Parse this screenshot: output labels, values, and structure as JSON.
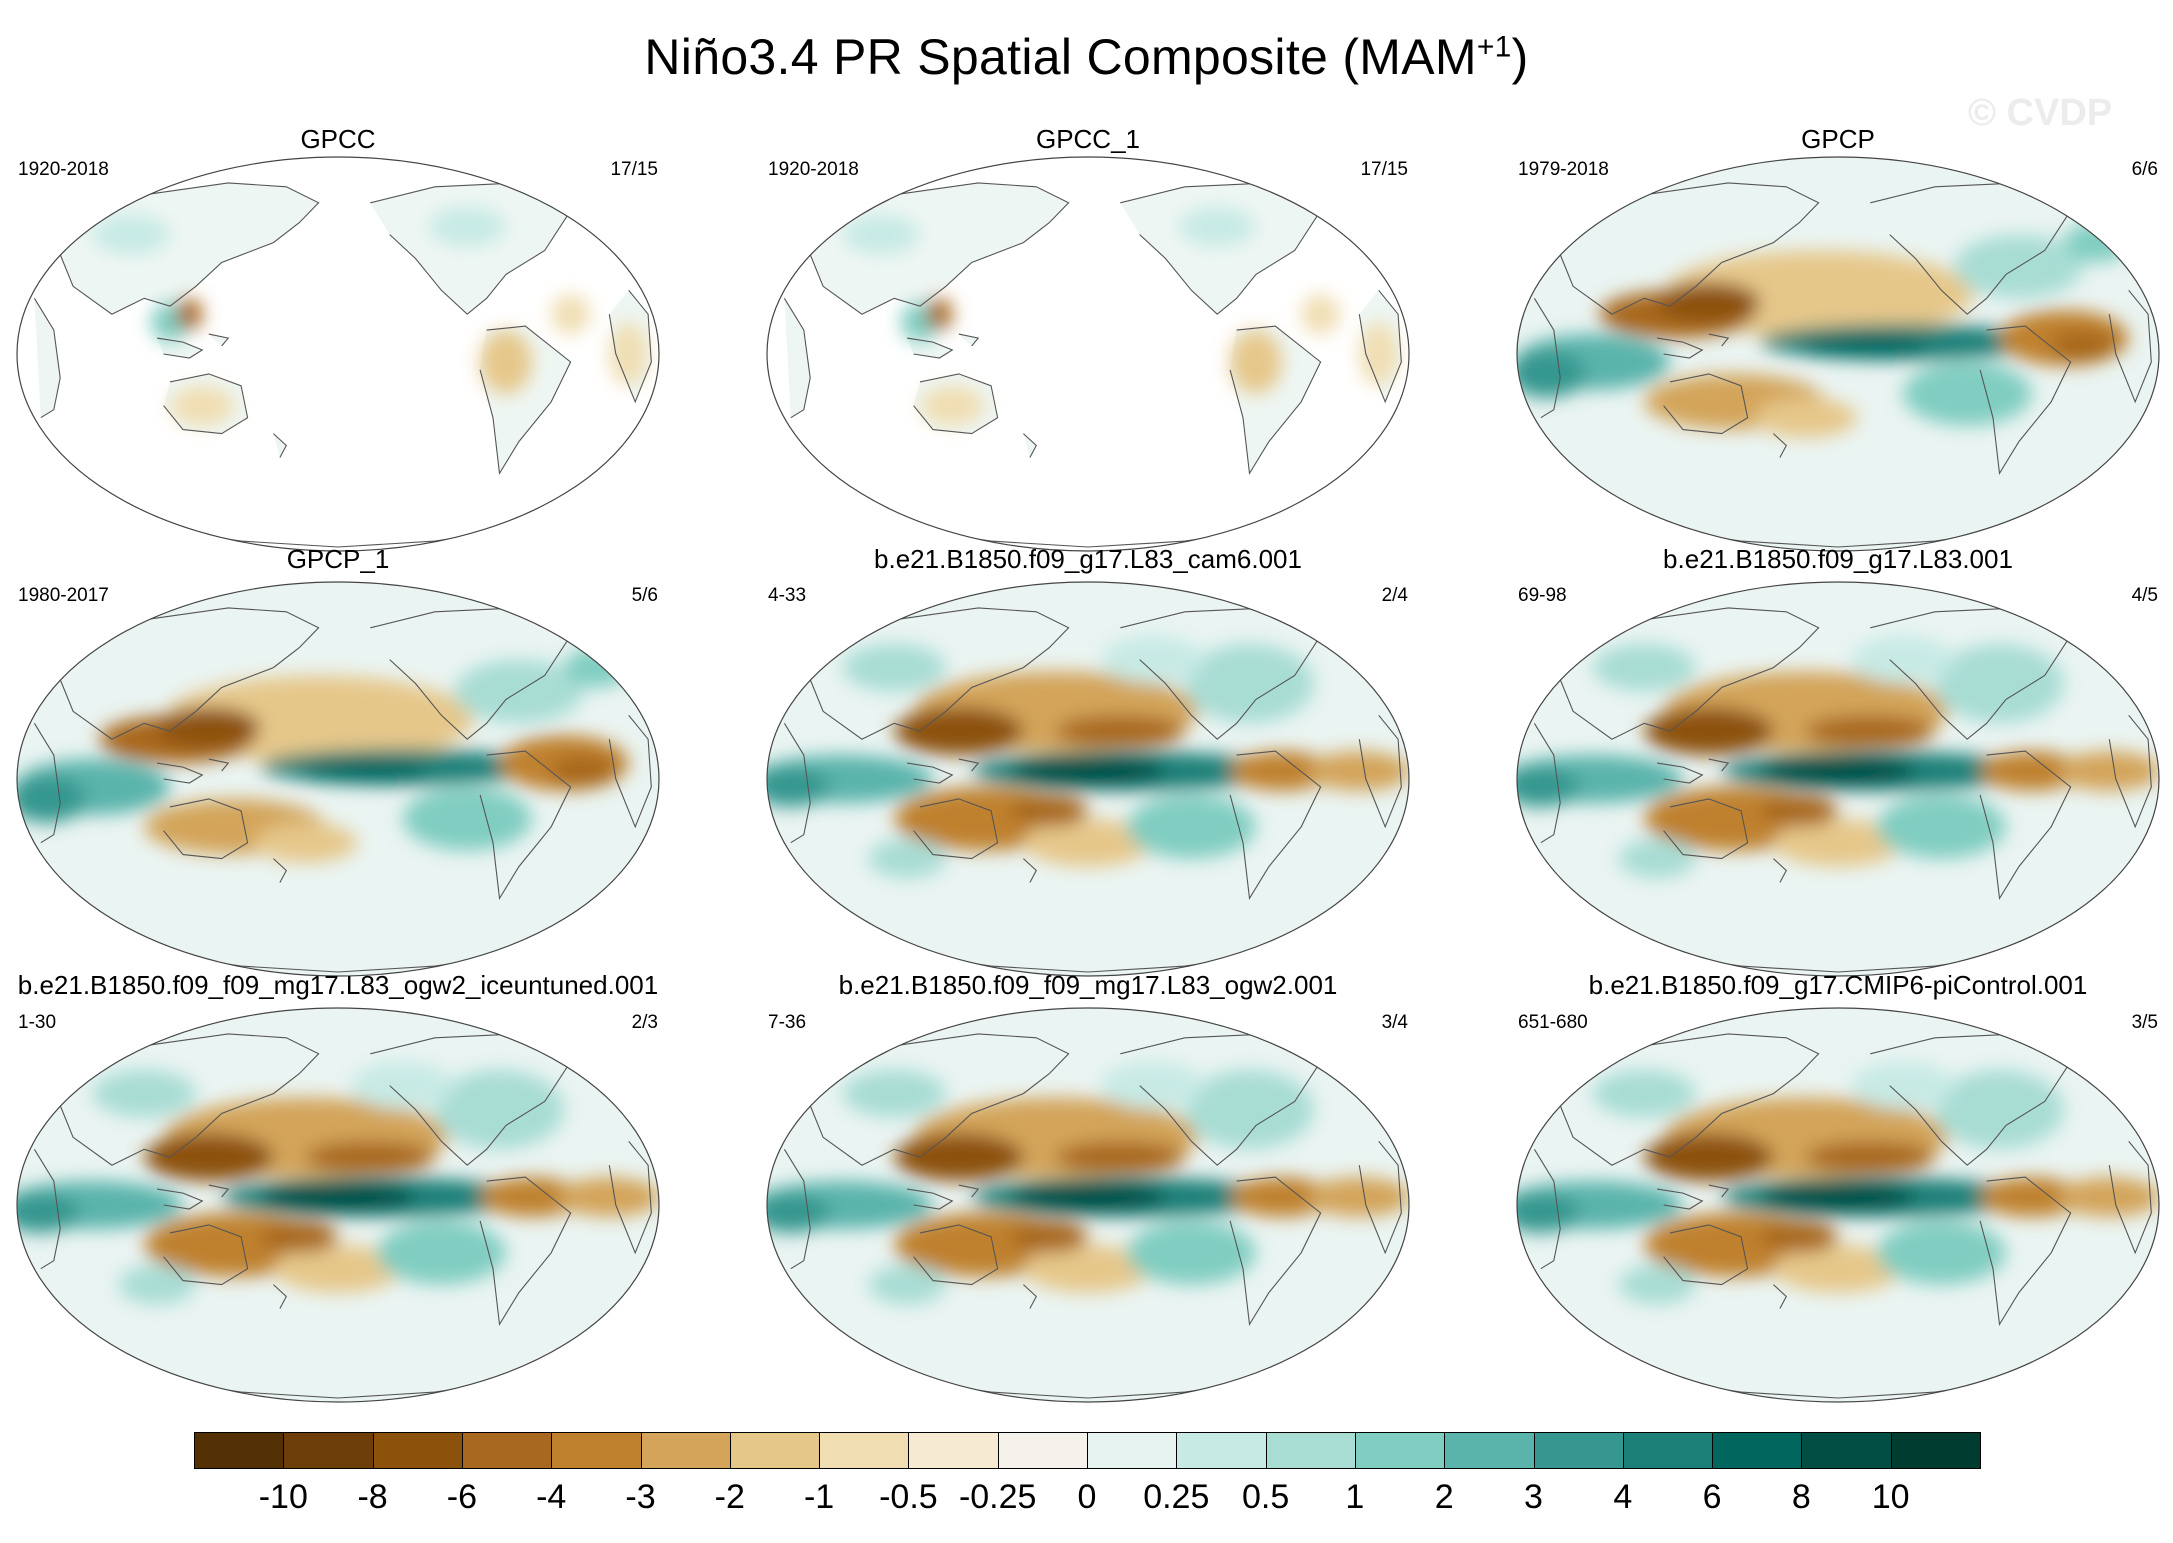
{
  "figure": {
    "title_main": "Niño3.4 PR Spatial Composite (MAM",
    "title_sup": "+1",
    "title_close": ")",
    "watermark": "© CVDP"
  },
  "panels": [
    {
      "name": "GPCC",
      "period": "1920-2018",
      "count": "17/15",
      "coverage": "land",
      "pattern": "weak"
    },
    {
      "name": "GPCC_1",
      "period": "1920-2018",
      "count": "17/15",
      "coverage": "land",
      "pattern": "weak"
    },
    {
      "name": "GPCP",
      "period": "1979-2018",
      "count": "6/6",
      "coverage": "global",
      "pattern": "obs"
    },
    {
      "name": "GPCP_1",
      "period": "1980-2017",
      "count": "5/6",
      "coverage": "global",
      "pattern": "obs"
    },
    {
      "name": "b.e21.B1850.f09_g17.L83_cam6.001",
      "period": "4-33",
      "count": "2/4",
      "coverage": "global",
      "pattern": "model"
    },
    {
      "name": "b.e21.B1850.f09_g17.L83.001",
      "period": "69-98",
      "count": "4/5",
      "coverage": "global",
      "pattern": "model"
    },
    {
      "name": "b.e21.B1850.f09_f09_mg17.L83_ogw2_iceuntuned.001",
      "period": "1-30",
      "count": "2/3",
      "coverage": "global",
      "pattern": "model"
    },
    {
      "name": "b.e21.B1850.f09_f09_mg17.L83_ogw2.001",
      "period": "7-36",
      "count": "3/4",
      "coverage": "global",
      "pattern": "model"
    },
    {
      "name": "b.e21.B1850.f09_g17.CMIP6-piControl.001",
      "period": "651-680",
      "count": "3/5",
      "coverage": "global",
      "pattern": "model"
    }
  ],
  "colorbar": {
    "labels": [
      "-10",
      "-8",
      "-6",
      "-4",
      "-3",
      "-2",
      "-1",
      "-0.5",
      "-0.25",
      "0",
      "0.25",
      "0.5",
      "1",
      "2",
      "3",
      "4",
      "6",
      "8",
      "10"
    ],
    "colors": [
      "#543005",
      "#6d3e0a",
      "#8c510a",
      "#a8681f",
      "#bf812d",
      "#d3a45a",
      "#e6c78a",
      "#f0deb2",
      "#f6ead2",
      "#f5f2ec",
      "#e6f3f1",
      "#c7eae5",
      "#a8ddd4",
      "#80cdc1",
      "#5ab4ac",
      "#35978f",
      "#1c8078",
      "#01665e",
      "#014e45",
      "#003c30"
    ]
  }
}
